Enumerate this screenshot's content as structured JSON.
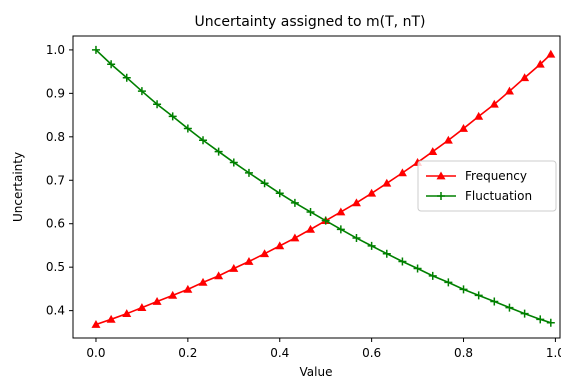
{
  "chart_data": {
    "type": "line",
    "title": "Uncertainty assigned to m(T, nT)",
    "xlabel": "Value",
    "ylabel": "Uncertainty",
    "xlim": [
      -0.05,
      1.01
    ],
    "ylim": [
      0.337,
      1.032
    ],
    "x_ticks": [
      0.0,
      0.2,
      0.4,
      0.6,
      0.8,
      1.0
    ],
    "x_tick_labels": [
      "0.0",
      "0.2",
      "0.4",
      "0.6",
      "0.8",
      "1.0"
    ],
    "y_ticks": [
      0.4,
      0.5,
      0.6,
      0.7,
      0.8,
      0.9,
      1.0
    ],
    "y_tick_labels": [
      "0.4",
      "0.5",
      "0.6",
      "0.7",
      "0.8",
      "0.9",
      "1.0"
    ],
    "grid": false,
    "legend_position": "center-right",
    "x": [
      0.0,
      0.033,
      0.067,
      0.1,
      0.133,
      0.167,
      0.2,
      0.233,
      0.267,
      0.3,
      0.333,
      0.367,
      0.4,
      0.433,
      0.467,
      0.5,
      0.533,
      0.567,
      0.6,
      0.633,
      0.667,
      0.7,
      0.733,
      0.767,
      0.8,
      0.833,
      0.867,
      0.9,
      0.933,
      0.967,
      0.99
    ],
    "series": [
      {
        "name": "Frequency",
        "color": "#ff0000",
        "marker": "triangle-up",
        "values": [
          0.368,
          0.38,
          0.393,
          0.407,
          0.421,
          0.435,
          0.449,
          0.465,
          0.48,
          0.497,
          0.513,
          0.531,
          0.549,
          0.567,
          0.587,
          0.607,
          0.627,
          0.648,
          0.67,
          0.693,
          0.717,
          0.741,
          0.766,
          0.792,
          0.819,
          0.847,
          0.875,
          0.905,
          0.936,
          0.967,
          0.99
        ]
      },
      {
        "name": "Fluctuation",
        "color": "#008000",
        "marker": "plus",
        "values": [
          1.0,
          0.967,
          0.936,
          0.905,
          0.875,
          0.847,
          0.819,
          0.792,
          0.766,
          0.741,
          0.717,
          0.693,
          0.67,
          0.648,
          0.627,
          0.607,
          0.587,
          0.567,
          0.549,
          0.531,
          0.513,
          0.497,
          0.48,
          0.465,
          0.449,
          0.435,
          0.421,
          0.407,
          0.393,
          0.38,
          0.372
        ]
      }
    ]
  }
}
